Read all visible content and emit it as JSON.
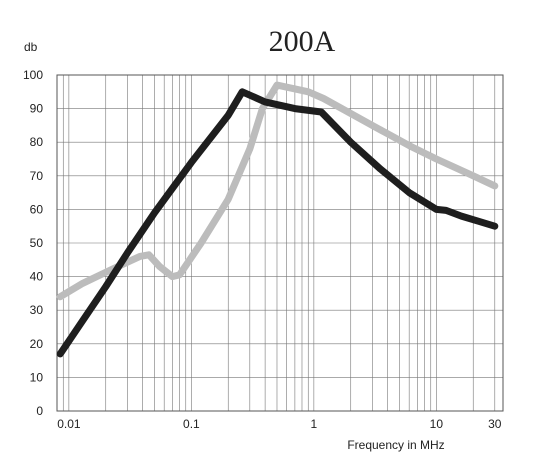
{
  "chart_data": {
    "type": "line",
    "title": "200A",
    "xlabel": "Frequency in MHz",
    "ylabel": "db",
    "x_scale": "log",
    "xlim": [
      0.008,
      35
    ],
    "ylim": [
      0,
      100
    ],
    "x_ticks": [
      {
        "value": 0.01,
        "label": "0.01"
      },
      {
        "value": 0.1,
        "label": "0.1"
      },
      {
        "value": 1,
        "label": "1"
      },
      {
        "value": 10,
        "label": "10"
      },
      {
        "value": 30,
        "label": "30"
      }
    ],
    "y_ticks": [
      {
        "value": 0,
        "label": "0"
      },
      {
        "value": 10,
        "label": "10"
      },
      {
        "value": 20,
        "label": "20"
      },
      {
        "value": 30,
        "label": "30"
      },
      {
        "value": 40,
        "label": "40"
      },
      {
        "value": 50,
        "label": "50"
      },
      {
        "value": 60,
        "label": "60"
      },
      {
        "value": 70,
        "label": "70"
      },
      {
        "value": 80,
        "label": "80"
      },
      {
        "value": 90,
        "label": "90"
      },
      {
        "value": 100,
        "label": "100"
      }
    ],
    "grid": true,
    "legend": "none",
    "series": [
      {
        "color": "#1e1e1e",
        "points": [
          [
            0.0085,
            17
          ],
          [
            0.0125,
            26
          ],
          [
            0.02,
            37
          ],
          [
            0.03,
            47
          ],
          [
            0.05,
            59
          ],
          [
            0.1,
            74
          ],
          [
            0.2,
            88
          ],
          [
            0.26,
            95
          ],
          [
            0.4,
            92
          ],
          [
            0.7,
            90
          ],
          [
            1.15,
            89
          ],
          [
            2,
            80
          ],
          [
            3.5,
            72
          ],
          [
            6,
            65
          ],
          [
            10,
            60
          ],
          [
            12,
            59.7
          ],
          [
            16,
            58
          ],
          [
            22,
            56.5
          ],
          [
            30,
            55
          ]
        ]
      },
      {
        "color": "#bcbcbc",
        "points": [
          [
            0.0085,
            34
          ],
          [
            0.013,
            38
          ],
          [
            0.022,
            42
          ],
          [
            0.038,
            46
          ],
          [
            0.045,
            46.5
          ],
          [
            0.055,
            43
          ],
          [
            0.07,
            40
          ],
          [
            0.08,
            40.5
          ],
          [
            0.12,
            50
          ],
          [
            0.2,
            63
          ],
          [
            0.3,
            78
          ],
          [
            0.38,
            90
          ],
          [
            0.5,
            97
          ],
          [
            0.9,
            95
          ],
          [
            1.2,
            93
          ],
          [
            3,
            85
          ],
          [
            6,
            79
          ],
          [
            10,
            75
          ],
          [
            20,
            70
          ],
          [
            30,
            67
          ]
        ]
      }
    ]
  }
}
